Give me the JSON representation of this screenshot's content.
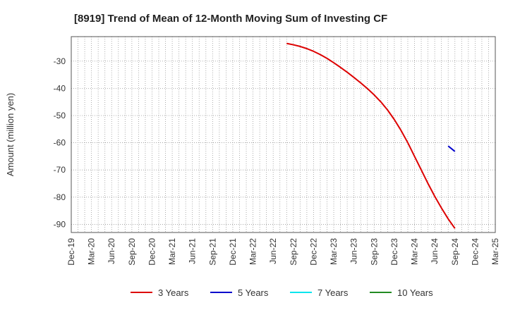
{
  "chart_data": {
    "type": "line",
    "title": "[8919]  Trend of Mean of 12-Month Moving Sum of Investing CF",
    "ylabel": "Amount (million yen)",
    "xlabel": "",
    "x_ticks": [
      "Dec-19",
      "Mar-20",
      "Jun-20",
      "Sep-20",
      "Dec-20",
      "Mar-21",
      "Jun-21",
      "Sep-21",
      "Dec-21",
      "Mar-22",
      "Jun-22",
      "Sep-22",
      "Dec-22",
      "Mar-23",
      "Jun-23",
      "Sep-23",
      "Dec-23",
      "Mar-24",
      "Jun-24",
      "Sep-24",
      "Dec-24",
      "Mar-25"
    ],
    "y_ticks": [
      -30,
      -40,
      -50,
      -60,
      -70,
      -80,
      -90
    ],
    "ylim": [
      -93,
      -21
    ],
    "grid": true,
    "legend_position": "bottom",
    "series": [
      {
        "name": "3 Years",
        "color": "#dd0000",
        "points": [
          [
            "Aug-22",
            -23.5
          ],
          [
            "Sep-22",
            -24.0
          ],
          [
            "Oct-22",
            -24.6
          ],
          [
            "Nov-22",
            -25.4
          ],
          [
            "Dec-22",
            -26.4
          ],
          [
            "Jan-23",
            -27.6
          ],
          [
            "Feb-23",
            -29.0
          ],
          [
            "Mar-23",
            -30.6
          ],
          [
            "Apr-23",
            -32.3
          ],
          [
            "May-23",
            -34.1
          ],
          [
            "Jun-23",
            -36.0
          ],
          [
            "Jul-23",
            -38.0
          ],
          [
            "Aug-23",
            -40.1
          ],
          [
            "Sep-23",
            -42.4
          ],
          [
            "Oct-23",
            -45.0
          ],
          [
            "Nov-23",
            -48.0
          ],
          [
            "Dec-23",
            -51.5
          ],
          [
            "Jan-24",
            -55.5
          ],
          [
            "Feb-24",
            -60.0
          ],
          [
            "Mar-24",
            -65.0
          ],
          [
            "Apr-24",
            -70.0
          ],
          [
            "May-24",
            -75.0
          ],
          [
            "Jun-24",
            -79.7
          ],
          [
            "Jul-24",
            -84.0
          ],
          [
            "Aug-24",
            -88.0
          ],
          [
            "Sep-24",
            -91.5
          ]
        ]
      },
      {
        "name": "5 Years",
        "color": "#0000cc",
        "points": [
          [
            "Aug-24",
            -61.2
          ],
          [
            "Sep-24",
            -63.2
          ]
        ]
      },
      {
        "name": "7 Years",
        "color": "#00e5ee",
        "points": []
      },
      {
        "name": "10 Years",
        "color": "#228b22",
        "points": []
      }
    ]
  }
}
